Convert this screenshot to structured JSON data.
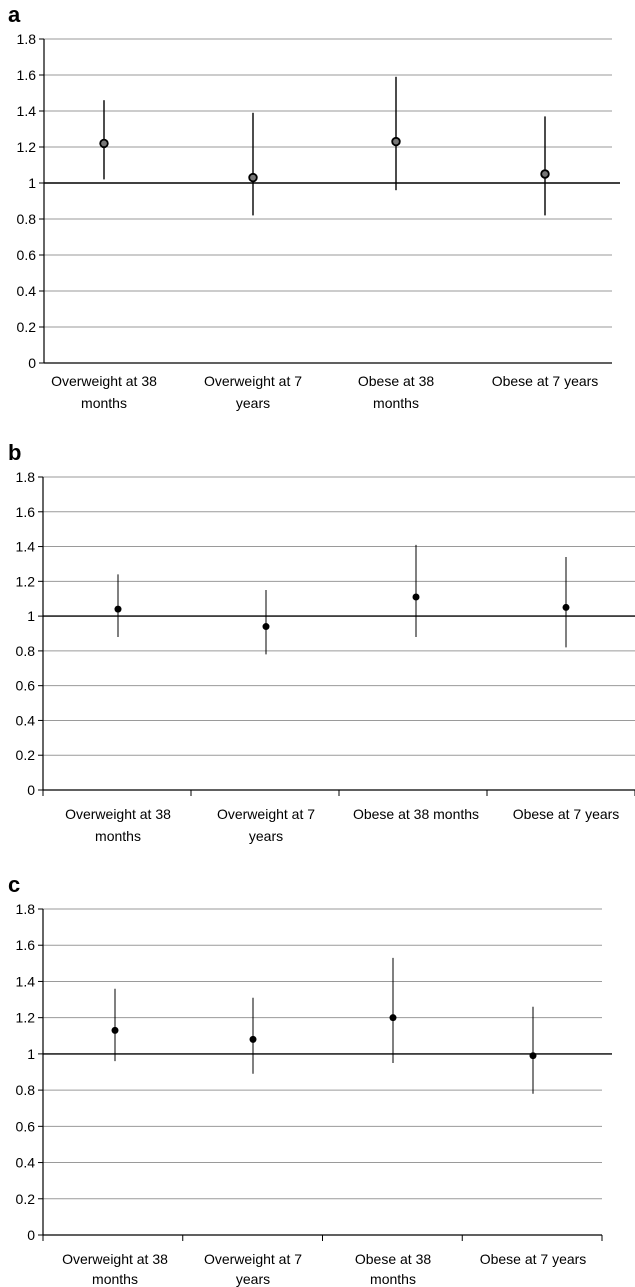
{
  "chart_data": [
    {
      "panel": "a",
      "type": "scatter",
      "error_bars": true,
      "categories": [
        [
          "Overweight at 38",
          "months"
        ],
        [
          "Overweight at 7",
          "years"
        ],
        [
          "Obese at 38",
          "months"
        ],
        [
          "Obese at 7 years"
        ]
      ],
      "values": [
        1.22,
        1.03,
        1.23,
        1.05
      ],
      "lower": [
        1.02,
        0.82,
        0.96,
        0.82
      ],
      "upper": [
        1.46,
        1.39,
        1.59,
        1.37
      ],
      "reference_line": 1,
      "ylim": [
        0,
        1.8
      ],
      "yticks": [
        "0",
        "0.2",
        "0.4",
        "0.6",
        "0.8",
        "1",
        "1.2",
        "1.4",
        "1.6",
        "1.8"
      ],
      "grid": true,
      "marker": "hollow-circle"
    },
    {
      "panel": "b",
      "type": "scatter",
      "error_bars": true,
      "categories": [
        [
          "Overweight at 38",
          "months"
        ],
        [
          "Overweight at 7",
          "years"
        ],
        [
          "Obese at 38 months"
        ],
        [
          "Obese at 7 years"
        ]
      ],
      "values": [
        1.04,
        0.94,
        1.11,
        1.05
      ],
      "lower": [
        0.88,
        0.78,
        0.88,
        0.82
      ],
      "upper": [
        1.24,
        1.15,
        1.41,
        1.34
      ],
      "reference_line": 1,
      "ylim": [
        0,
        1.8
      ],
      "yticks": [
        "0",
        "0.2",
        "0.4",
        "0.6",
        "0.8",
        "1",
        "1.2",
        "1.4",
        "1.6",
        "1.8"
      ],
      "grid": true,
      "marker": "filled-circle"
    },
    {
      "panel": "c",
      "type": "scatter",
      "error_bars": true,
      "categories": [
        [
          "Overweight at 38",
          "months"
        ],
        [
          "Overweight at 7",
          "years"
        ],
        [
          "Obese at 38",
          "months"
        ],
        [
          "Obese at 7 years"
        ]
      ],
      "values": [
        1.13,
        1.08,
        1.2,
        0.99
      ],
      "lower": [
        0.96,
        0.89,
        0.95,
        0.78
      ],
      "upper": [
        1.36,
        1.31,
        1.53,
        1.26
      ],
      "reference_line": 1,
      "ylim": [
        0,
        1.8
      ],
      "yticks": [
        "0",
        "0.2",
        "0.4",
        "0.6",
        "0.8",
        "1",
        "1.2",
        "1.4",
        "1.6",
        "1.8"
      ],
      "grid": true,
      "marker": "filled-circle"
    }
  ]
}
